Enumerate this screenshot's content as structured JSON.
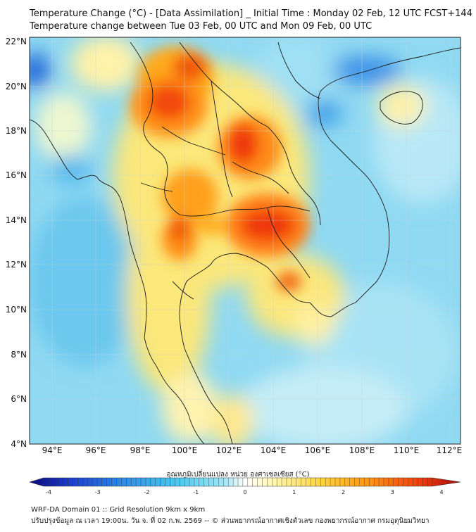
{
  "header": {
    "line1": "Temperature Change (°C) - [Data Assimilation] _ Initial Time : Monday 02 Feb, 12 UTC FCST+144",
    "line2": "Temperature change between Tue 03 Feb, 00 UTC and Mon 09 Feb, 00 UTC"
  },
  "axes": {
    "lat_labels": [
      "22°N",
      "20°N",
      "18°N",
      "16°N",
      "14°N",
      "12°N",
      "10°N",
      "8°N",
      "6°N",
      "4°N"
    ],
    "lon_labels": [
      "94°E",
      "96°E",
      "98°E",
      "100°E",
      "102°E",
      "104°E",
      "106°E",
      "108°E",
      "110°E",
      "112°E"
    ]
  },
  "colorbar": {
    "title": "อุณหภูมิเปลี่ยนแปลง หน่วย องศาเซลเซียส (°C)",
    "ticks": [
      "-4",
      "-3",
      "-2",
      "-1",
      "0",
      "1",
      "2",
      "3",
      "4"
    ],
    "colors": [
      "#0a0a7a",
      "#1e3fd0",
      "#2f8ee8",
      "#45c8f0",
      "#9fe6f5",
      "#ffffff",
      "#fff6a8",
      "#ffd23a",
      "#ff9a14",
      "#f2400c",
      "#a80a0a"
    ]
  },
  "footer": {
    "line1": "WRF-DA Domain 01 :: Grid Resolution 9km x 9km",
    "line2": "ปรับปรุงข้อมูล ณ เวลา 19:00น. วัน จ. ที่ 02 ก.พ. 2569 -- © ส่วนพยากรณ์อากาศเชิงตัวเลข กองพยากรณ์อากาศ กรมอุตุนิยมวิทยา"
  }
}
